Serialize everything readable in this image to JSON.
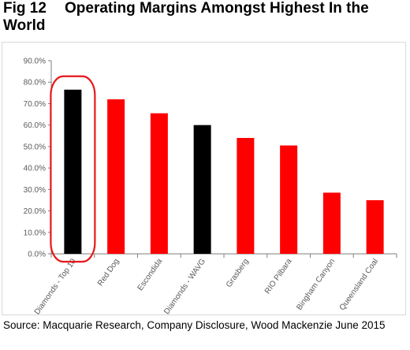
{
  "figure": {
    "number": "Fig 12",
    "title": "Operating Margins Amongst Highest In the World",
    "source": "Source: Macquarie Research, Company Disclosure, Wood Mackenzie June 2015"
  },
  "chart_data": {
    "type": "bar",
    "title": "",
    "xlabel": "",
    "ylabel": "",
    "categories": [
      "Diamonds - Top 10",
      "Red Dog",
      "Escondida",
      "Diamonds - WAVG",
      "Grasberg",
      "RIO Pilbara",
      "Bingham Canyon",
      "Queensland Coal"
    ],
    "values": [
      76.5,
      72.0,
      65.5,
      60.0,
      54.0,
      50.5,
      28.5,
      25.0
    ],
    "bar_colors": [
      "#000000",
      "#ff0000",
      "#ff0000",
      "#000000",
      "#ff0000",
      "#ff0000",
      "#ff0000",
      "#ff0000"
    ],
    "ylim": [
      0,
      90
    ],
    "ytick_step": 10,
    "ytick_labels": [
      "0.0%",
      "10.0%",
      "20.0%",
      "30.0%",
      "40.0%",
      "50.0%",
      "60.0%",
      "70.0%",
      "80.0%",
      "90.0%"
    ],
    "grid": false,
    "legend": "none",
    "highlight_category": "Diamonds - Top 10",
    "highlight_color": "#e8171a"
  }
}
